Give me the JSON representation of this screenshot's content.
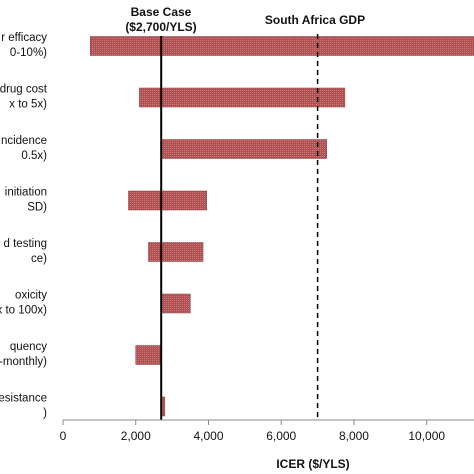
{
  "chart_data": {
    "type": "tornado",
    "x_axis": {
      "title": "ICER ($/YLS)",
      "range": [
        0,
        11300
      ],
      "ticks": [
        0,
        2000,
        4000,
        6000,
        8000,
        10000
      ],
      "tick_labels": [
        "0",
        "2,000",
        "4,000",
        "6,000",
        "8,000",
        "10,000"
      ]
    },
    "base_case": {
      "value": 2700,
      "label_line1": "Base Case",
      "label_line2": "($2,700/YLS)"
    },
    "reference_line": {
      "value": 7000,
      "label": "South Africa GDP"
    },
    "bar_color": "#b05050",
    "rows": [
      {
        "label_line1": "r efficacy",
        "label_line2": "0-10%)",
        "low": 750,
        "high": 11300
      },
      {
        "label_line1": "drug cost",
        "label_line2": "x to 5x)",
        "low": 2100,
        "high": 7750
      },
      {
        "label_line1": "ncidence",
        "label_line2": "0.5x)",
        "low": 2700,
        "high": 7250
      },
      {
        "label_line1": "initiation",
        "label_line2": "SD)",
        "low": 1800,
        "high": 3950
      },
      {
        "label_line1": "d testing",
        "label_line2": "ce)",
        "low": 2350,
        "high": 3850
      },
      {
        "label_line1": "oxicity",
        "label_line2": "x to 100x)",
        "low": 2700,
        "high": 3500
      },
      {
        "label_line1": "quency",
        "label_line2": "-monthly)",
        "low": 2000,
        "high": 2700
      },
      {
        "label_line1": "esistance",
        "label_line2": ")",
        "low": 2700,
        "high": 2800
      }
    ]
  }
}
